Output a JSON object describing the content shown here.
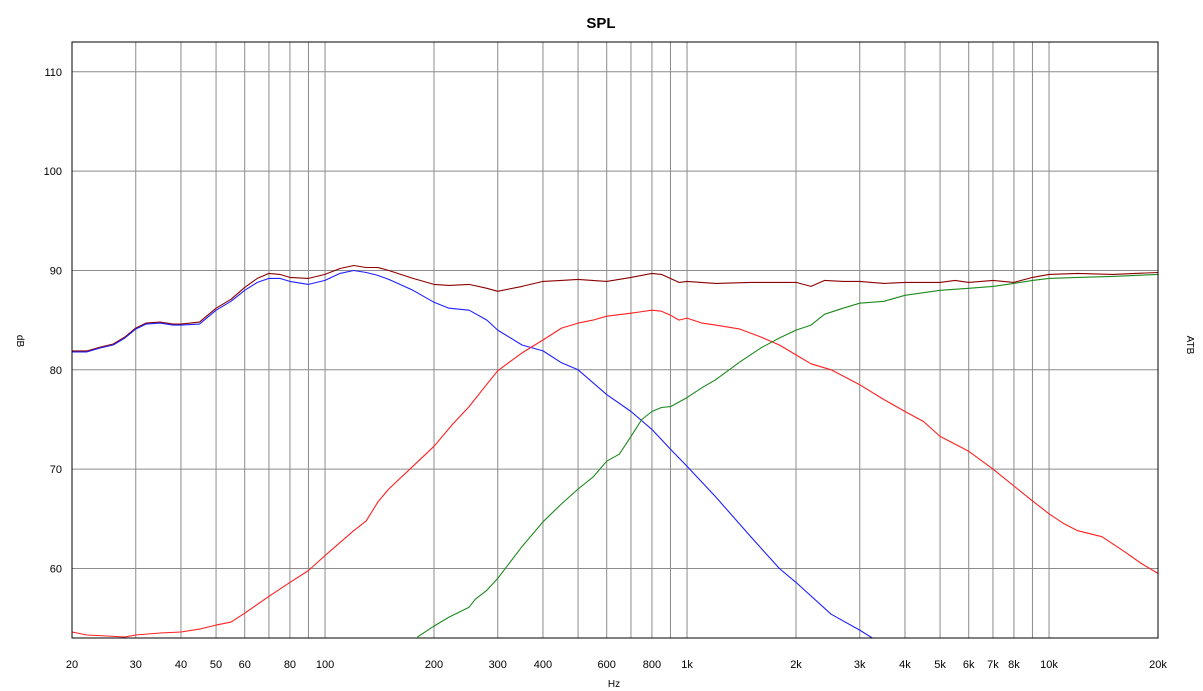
{
  "chart_data": {
    "type": "line",
    "title": "SPL",
    "xlabel": "Hz",
    "ylabel": "dB",
    "right_label": "ATB",
    "x_scale": "log",
    "xlim": [
      20,
      20000
    ],
    "ylim": [
      53,
      113
    ],
    "grid": true,
    "x_ticks": [
      {
        "value": 20,
        "label": "20"
      },
      {
        "value": 30,
        "label": "30"
      },
      {
        "value": 40,
        "label": "40"
      },
      {
        "value": 50,
        "label": "50"
      },
      {
        "value": 60,
        "label": "60"
      },
      {
        "value": 80,
        "label": "80"
      },
      {
        "value": 100,
        "label": "100"
      },
      {
        "value": 200,
        "label": "200"
      },
      {
        "value": 300,
        "label": "300"
      },
      {
        "value": 400,
        "label": "400"
      },
      {
        "value": 600,
        "label": "600"
      },
      {
        "value": 800,
        "label": "800"
      },
      {
        "value": 1000,
        "label": "1k"
      },
      {
        "value": 2000,
        "label": "2k"
      },
      {
        "value": 3000,
        "label": "3k"
      },
      {
        "value": 4000,
        "label": "4k"
      },
      {
        "value": 5000,
        "label": "5k"
      },
      {
        "value": 6000,
        "label": "6k"
      },
      {
        "value": 7000,
        "label": "7k"
      },
      {
        "value": 8000,
        "label": "8k"
      },
      {
        "value": 10000,
        "label": "10k"
      },
      {
        "value": 20000,
        "label": "20k"
      }
    ],
    "x_gridlines": [
      30,
      40,
      50,
      60,
      70,
      80,
      90,
      100,
      200,
      300,
      400,
      500,
      600,
      700,
      800,
      900,
      1000,
      2000,
      3000,
      4000,
      5000,
      6000,
      7000,
      8000,
      9000,
      10000
    ],
    "y_ticks": [
      60,
      70,
      80,
      90,
      100,
      110
    ],
    "series": [
      {
        "color": "#8b0000",
        "points": [
          [
            20,
            81.9
          ],
          [
            22,
            81.9
          ],
          [
            24,
            82.3
          ],
          [
            26,
            82.6
          ],
          [
            28,
            83.3
          ],
          [
            30,
            84.2
          ],
          [
            32,
            84.7
          ],
          [
            35,
            84.8
          ],
          [
            38,
            84.6
          ],
          [
            40,
            84.6
          ],
          [
            45,
            84.8
          ],
          [
            50,
            86.2
          ],
          [
            55,
            87.1
          ],
          [
            60,
            88.3
          ],
          [
            65,
            89.2
          ],
          [
            70,
            89.7
          ],
          [
            75,
            89.6
          ],
          [
            80,
            89.3
          ],
          [
            90,
            89.2
          ],
          [
            100,
            89.6
          ],
          [
            110,
            90.2
          ],
          [
            120,
            90.5
          ],
          [
            130,
            90.3
          ],
          [
            140,
            90.3
          ],
          [
            150,
            90
          ],
          [
            175,
            89.2
          ],
          [
            200,
            88.6
          ],
          [
            220,
            88.5
          ],
          [
            250,
            88.6
          ],
          [
            280,
            88.2
          ],
          [
            300,
            87.9
          ],
          [
            350,
            88.4
          ],
          [
            400,
            88.9
          ],
          [
            450,
            89
          ],
          [
            500,
            89.1
          ],
          [
            600,
            88.9
          ],
          [
            700,
            89.3
          ],
          [
            800,
            89.7
          ],
          [
            850,
            89.6
          ],
          [
            950,
            88.8
          ],
          [
            1000,
            88.9
          ],
          [
            1200,
            88.7
          ],
          [
            1500,
            88.8
          ],
          [
            1800,
            88.8
          ],
          [
            2000,
            88.8
          ],
          [
            2200,
            88.4
          ],
          [
            2400,
            89
          ],
          [
            2700,
            88.9
          ],
          [
            3000,
            88.9
          ],
          [
            3500,
            88.7
          ],
          [
            4000,
            88.8
          ],
          [
            5000,
            88.8
          ],
          [
            5500,
            89
          ],
          [
            6000,
            88.8
          ],
          [
            7000,
            89
          ],
          [
            8000,
            88.8
          ],
          [
            9000,
            89.3
          ],
          [
            10000,
            89.6
          ],
          [
            12000,
            89.7
          ],
          [
            15000,
            89.6
          ],
          [
            20000,
            89.8
          ]
        ]
      },
      {
        "color": "#1f1fff",
        "points": [
          [
            20,
            81.8
          ],
          [
            22,
            81.8
          ],
          [
            24,
            82.2
          ],
          [
            26,
            82.5
          ],
          [
            28,
            83.2
          ],
          [
            30,
            84.1
          ],
          [
            32,
            84.6
          ],
          [
            35,
            84.7
          ],
          [
            38,
            84.5
          ],
          [
            40,
            84.5
          ],
          [
            45,
            84.6
          ],
          [
            50,
            86
          ],
          [
            55,
            86.9
          ],
          [
            60,
            88
          ],
          [
            65,
            88.8
          ],
          [
            70,
            89.2
          ],
          [
            75,
            89.2
          ],
          [
            80,
            88.9
          ],
          [
            90,
            88.6
          ],
          [
            100,
            89
          ],
          [
            110,
            89.7
          ],
          [
            120,
            90
          ],
          [
            130,
            89.8
          ],
          [
            140,
            89.5
          ],
          [
            150,
            89.1
          ],
          [
            175,
            88
          ],
          [
            200,
            86.8
          ],
          [
            220,
            86.2
          ],
          [
            250,
            86
          ],
          [
            280,
            85
          ],
          [
            300,
            84
          ],
          [
            350,
            82.5
          ],
          [
            400,
            81.9
          ],
          [
            450,
            80.7
          ],
          [
            500,
            80
          ],
          [
            600,
            77.5
          ],
          [
            700,
            75.8
          ],
          [
            800,
            74
          ],
          [
            900,
            72
          ],
          [
            1000,
            70.3
          ],
          [
            1200,
            67.2
          ],
          [
            1500,
            63.2
          ],
          [
            1800,
            60
          ],
          [
            2000,
            58.6
          ],
          [
            2500,
            55.4
          ],
          [
            3000,
            53.8
          ],
          [
            3250,
            53
          ]
        ]
      },
      {
        "color": "#ff2020",
        "points": [
          [
            20,
            53.6
          ],
          [
            22,
            53.3
          ],
          [
            25,
            53.2
          ],
          [
            28,
            53.1
          ],
          [
            30,
            53.3
          ],
          [
            35,
            53.5
          ],
          [
            40,
            53.6
          ],
          [
            45,
            53.9
          ],
          [
            50,
            54.3
          ],
          [
            55,
            54.6
          ],
          [
            60,
            55.5
          ],
          [
            70,
            57.2
          ],
          [
            80,
            58.6
          ],
          [
            90,
            59.8
          ],
          [
            100,
            61.3
          ],
          [
            110,
            62.6
          ],
          [
            120,
            63.8
          ],
          [
            130,
            64.8
          ],
          [
            140,
            66.7
          ],
          [
            150,
            68
          ],
          [
            175,
            70.3
          ],
          [
            200,
            72.3
          ],
          [
            225,
            74.5
          ],
          [
            250,
            76.3
          ],
          [
            275,
            78.2
          ],
          [
            300,
            79.9
          ],
          [
            350,
            81.7
          ],
          [
            400,
            83
          ],
          [
            450,
            84.2
          ],
          [
            500,
            84.7
          ],
          [
            550,
            85
          ],
          [
            600,
            85.4
          ],
          [
            700,
            85.7
          ],
          [
            800,
            86
          ],
          [
            850,
            85.9
          ],
          [
            900,
            85.5
          ],
          [
            950,
            85
          ],
          [
            1000,
            85.2
          ],
          [
            1100,
            84.7
          ],
          [
            1200,
            84.5
          ],
          [
            1400,
            84.1
          ],
          [
            1600,
            83.3
          ],
          [
            1800,
            82.5
          ],
          [
            2000,
            81.5
          ],
          [
            2200,
            80.6
          ],
          [
            2500,
            80
          ],
          [
            3000,
            78.5
          ],
          [
            3500,
            77
          ],
          [
            4000,
            75.8
          ],
          [
            4500,
            74.8
          ],
          [
            5000,
            73.3
          ],
          [
            6000,
            71.8
          ],
          [
            7000,
            70
          ],
          [
            8000,
            68.3
          ],
          [
            9000,
            66.8
          ],
          [
            10000,
            65.5
          ],
          [
            11000,
            64.5
          ],
          [
            12000,
            63.8
          ],
          [
            14000,
            63.2
          ],
          [
            16000,
            61.8
          ],
          [
            18000,
            60.5
          ],
          [
            20000,
            59.5
          ]
        ]
      },
      {
        "color": "#1c8a1c",
        "points": [
          [
            180,
            53.1
          ],
          [
            200,
            54.2
          ],
          [
            220,
            55.1
          ],
          [
            250,
            56.1
          ],
          [
            260,
            56.9
          ],
          [
            280,
            57.8
          ],
          [
            300,
            59
          ],
          [
            350,
            62.2
          ],
          [
            400,
            64.7
          ],
          [
            450,
            66.5
          ],
          [
            500,
            68
          ],
          [
            550,
            69.2
          ],
          [
            600,
            70.8
          ],
          [
            650,
            71.5
          ],
          [
            700,
            73.3
          ],
          [
            750,
            75
          ],
          [
            800,
            75.8
          ],
          [
            850,
            76.2
          ],
          [
            900,
            76.3
          ],
          [
            1000,
            77.2
          ],
          [
            1100,
            78.2
          ],
          [
            1200,
            79
          ],
          [
            1400,
            80.8
          ],
          [
            1600,
            82.2
          ],
          [
            1800,
            83.2
          ],
          [
            2000,
            84
          ],
          [
            2200,
            84.5
          ],
          [
            2400,
            85.6
          ],
          [
            2700,
            86.2
          ],
          [
            3000,
            86.7
          ],
          [
            3500,
            86.9
          ],
          [
            4000,
            87.5
          ],
          [
            5000,
            88
          ],
          [
            6000,
            88.2
          ],
          [
            7000,
            88.4
          ],
          [
            8000,
            88.7
          ],
          [
            9000,
            89
          ],
          [
            10000,
            89.2
          ],
          [
            12000,
            89.3
          ],
          [
            15000,
            89.4
          ],
          [
            20000,
            89.6
          ]
        ]
      }
    ]
  }
}
